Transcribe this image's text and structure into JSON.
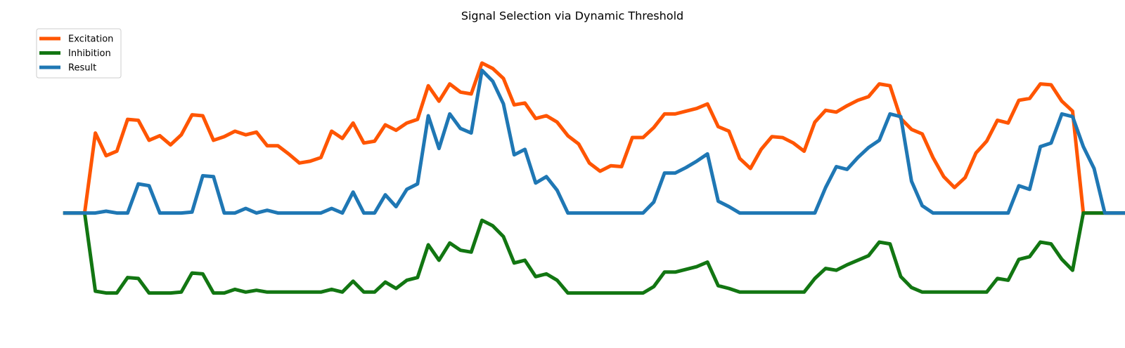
{
  "chart_data": {
    "type": "line",
    "title": "Signal Selection via Dynamic Threshold",
    "xlabel": "",
    "ylabel": "",
    "axes_visible": false,
    "grid": false,
    "legend_position": "top-left",
    "x_range": [
      -3,
      96
    ],
    "y_range": [
      -1.3,
      2.05
    ],
    "series": [
      {
        "name": "Excitation",
        "color": "#ff5500",
        "values": [
          0,
          0,
          0,
          0.88,
          0.63,
          0.68,
          1.03,
          1.02,
          0.8,
          0.85,
          0.75,
          0.86,
          1.08,
          1.07,
          0.8,
          0.84,
          0.9,
          0.86,
          0.89,
          0.74,
          0.74,
          0.65,
          0.55,
          0.57,
          0.61,
          0.9,
          0.82,
          0.99,
          0.77,
          0.79,
          0.97,
          0.91,
          0.99,
          1.03,
          1.4,
          1.23,
          1.42,
          1.33,
          1.31,
          1.65,
          1.59,
          1.48,
          1.19,
          1.21,
          1.04,
          1.07,
          1.0,
          0.85,
          0.76,
          0.55,
          0.46,
          0.52,
          0.51,
          0.83,
          0.83,
          0.94,
          1.09,
          1.09,
          1.12,
          1.15,
          1.2,
          0.95,
          0.9,
          0.6,
          0.49,
          0.7,
          0.84,
          0.83,
          0.77,
          0.68,
          1.0,
          1.13,
          1.11,
          1.18,
          1.24,
          1.28,
          1.42,
          1.4,
          1.04,
          0.92,
          0.87,
          0.61,
          0.4,
          0.28,
          0.39,
          0.66,
          0.79,
          1.02,
          0.99,
          1.24,
          1.26,
          1.42,
          1.41,
          1.23,
          1.12,
          0,
          0,
          0,
          0,
          0,
          0
        ]
      },
      {
        "name": "Inhibition",
        "color": "#127612",
        "values": [
          0,
          0,
          0,
          -0.86,
          -0.88,
          -0.88,
          -0.71,
          -0.72,
          -0.88,
          -0.88,
          -0.88,
          -0.87,
          -0.66,
          -0.67,
          -0.88,
          -0.88,
          -0.84,
          -0.87,
          -0.85,
          -0.87,
          -0.87,
          -0.87,
          -0.87,
          -0.87,
          -0.87,
          -0.84,
          -0.87,
          -0.75,
          -0.87,
          -0.87,
          -0.76,
          -0.83,
          -0.74,
          -0.71,
          -0.35,
          -0.52,
          -0.33,
          -0.41,
          -0.43,
          -0.08,
          -0.14,
          -0.26,
          -0.55,
          -0.52,
          -0.7,
          -0.67,
          -0.74,
          -0.88,
          -0.88,
          -0.88,
          -0.88,
          -0.88,
          -0.88,
          -0.88,
          -0.88,
          -0.81,
          -0.65,
          -0.65,
          -0.62,
          -0.59,
          -0.54,
          -0.8,
          -0.83,
          -0.87,
          -0.87,
          -0.87,
          -0.87,
          -0.87,
          -0.87,
          -0.87,
          -0.72,
          -0.61,
          -0.63,
          -0.57,
          -0.52,
          -0.47,
          -0.32,
          -0.34,
          -0.7,
          -0.82,
          -0.87,
          -0.87,
          -0.87,
          -0.87,
          -0.87,
          -0.87,
          -0.87,
          -0.72,
          -0.74,
          -0.51,
          -0.48,
          -0.32,
          -0.34,
          -0.51,
          -0.63,
          0,
          0,
          0,
          0,
          0,
          0
        ]
      },
      {
        "name": "Result",
        "color": "#1f77b4",
        "values": [
          0,
          0,
          0,
          0,
          0.02,
          0,
          0,
          0.32,
          0.3,
          0,
          0,
          0,
          0.01,
          0.41,
          0.4,
          0,
          0,
          0.05,
          0,
          0.03,
          0,
          0,
          0,
          0,
          0,
          0.05,
          0,
          0.23,
          0,
          0,
          0.2,
          0.07,
          0.26,
          0.32,
          1.07,
          0.71,
          1.09,
          0.93,
          0.88,
          1.57,
          1.45,
          1.2,
          0.64,
          0.7,
          0.33,
          0.4,
          0.25,
          0,
          0,
          0,
          0,
          0,
          0,
          0,
          0,
          0.12,
          0.44,
          0.44,
          0.5,
          0.57,
          0.65,
          0.13,
          0.07,
          0,
          0,
          0,
          0,
          0,
          0,
          0,
          0,
          0.28,
          0.51,
          0.48,
          0.61,
          0.72,
          0.8,
          1.09,
          1.06,
          0.35,
          0.08,
          0,
          0,
          0,
          0,
          0,
          0,
          0,
          0,
          0.3,
          0.26,
          0.73,
          0.77,
          1.09,
          1.06,
          0.73,
          0.49,
          0,
          0,
          0,
          0,
          0,
          0
        ]
      }
    ]
  }
}
